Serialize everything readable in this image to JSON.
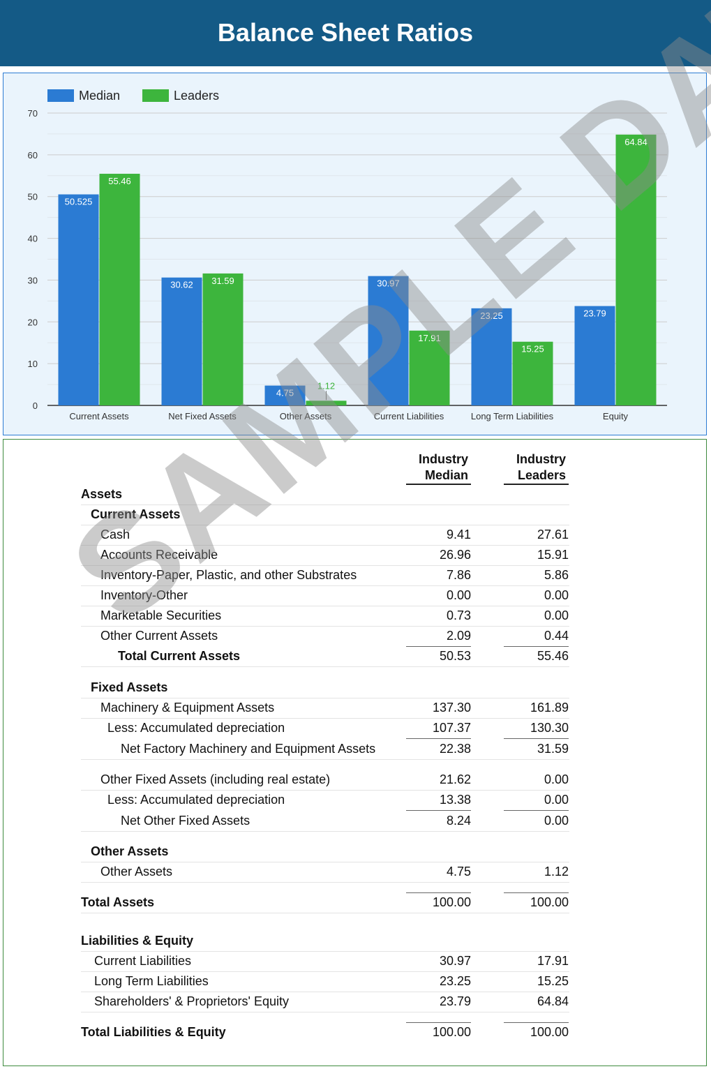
{
  "page": {
    "title": "Balance Sheet Ratios",
    "watermark": "SAMPLE DATA"
  },
  "colors": {
    "header": "#145a86",
    "median": "#2b7bd3",
    "leaders": "#3db53d"
  },
  "chart_data": {
    "type": "bar",
    "title": "",
    "xlabel": "",
    "ylabel": "",
    "ylim": [
      0,
      70
    ],
    "yticks": [
      0,
      10,
      20,
      30,
      40,
      50,
      60,
      70
    ],
    "grid": true,
    "legend_position": "top-left",
    "categories": [
      "Current Assets",
      "Net Fixed Assets",
      "Other Assets",
      "Current Liabilities",
      "Long Term Liabilities",
      "Equity"
    ],
    "series": [
      {
        "name": "Median",
        "color": "#2b7bd3",
        "values": [
          50.525,
          30.62,
          4.75,
          30.97,
          23.25,
          23.79
        ],
        "labels": [
          "50.525",
          "30.62",
          "4.75",
          "30.97",
          "23.25",
          "23.79"
        ]
      },
      {
        "name": "Leaders",
        "color": "#3db53d",
        "values": [
          55.46,
          31.59,
          1.12,
          17.91,
          15.25,
          64.84
        ],
        "labels": [
          "55.46",
          "31.59",
          "1.12",
          "17.91",
          "15.25",
          "64.84"
        ]
      }
    ]
  },
  "table": {
    "col1": "Industry Median",
    "col1_line1": "Industry",
    "col1_line2": "Median",
    "col2_line1": "Industry",
    "col2_line2": "Leaders",
    "rows": [
      {
        "label": "Assets",
        "v1": "",
        "v2": ""
      },
      {
        "label": "Current Assets",
        "v1": "",
        "v2": ""
      },
      {
        "label": "Cash",
        "v1": "9.41",
        "v2": "27.61"
      },
      {
        "label": "Accounts Receivable",
        "v1": "26.96",
        "v2": "15.91"
      },
      {
        "label": "Inventory-Paper, Plastic, and other Substrates",
        "v1": "7.86",
        "v2": "5.86"
      },
      {
        "label": "Inventory-Other",
        "v1": "0.00",
        "v2": "0.00"
      },
      {
        "label": "Marketable Securities",
        "v1": "0.73",
        "v2": "0.00"
      },
      {
        "label": "Other Current Assets",
        "v1": "2.09",
        "v2": "0.44"
      },
      {
        "label": "Total Current Assets",
        "v1": "50.53",
        "v2": "55.46"
      },
      {
        "label": "Fixed Assets",
        "v1": "",
        "v2": ""
      },
      {
        "label": "Machinery & Equipment Assets",
        "v1": "137.30",
        "v2": "161.89"
      },
      {
        "label": "Less: Accumulated depreciation",
        "v1": "107.37",
        "v2": "130.30"
      },
      {
        "label": "Net Factory Machinery and Equipment Assets",
        "v1": "22.38",
        "v2": "31.59"
      },
      {
        "label": "Other Fixed Assets (including real estate)",
        "v1": "21.62",
        "v2": "0.00"
      },
      {
        "label": "Less: Accumulated depreciation",
        "v1": "13.38",
        "v2": "0.00"
      },
      {
        "label": "Net Other Fixed Assets",
        "v1": "8.24",
        "v2": "0.00"
      },
      {
        "label": "Other Assets",
        "v1": "",
        "v2": ""
      },
      {
        "label": "Other Assets",
        "v1": "4.75",
        "v2": "1.12"
      },
      {
        "label": "Total Assets",
        "v1": "100.00",
        "v2": "100.00"
      },
      {
        "label": "Liabilities & Equity",
        "v1": "",
        "v2": ""
      },
      {
        "label": "Current Liabilities",
        "v1": "30.97",
        "v2": "17.91"
      },
      {
        "label": "Long Term Liabilities",
        "v1": "23.25",
        "v2": "15.25"
      },
      {
        "label": "Shareholders' & Proprietors' Equity",
        "v1": "23.79",
        "v2": "64.84"
      },
      {
        "label": "Total Liabilities & Equity",
        "v1": "100.00",
        "v2": "100.00"
      }
    ]
  }
}
